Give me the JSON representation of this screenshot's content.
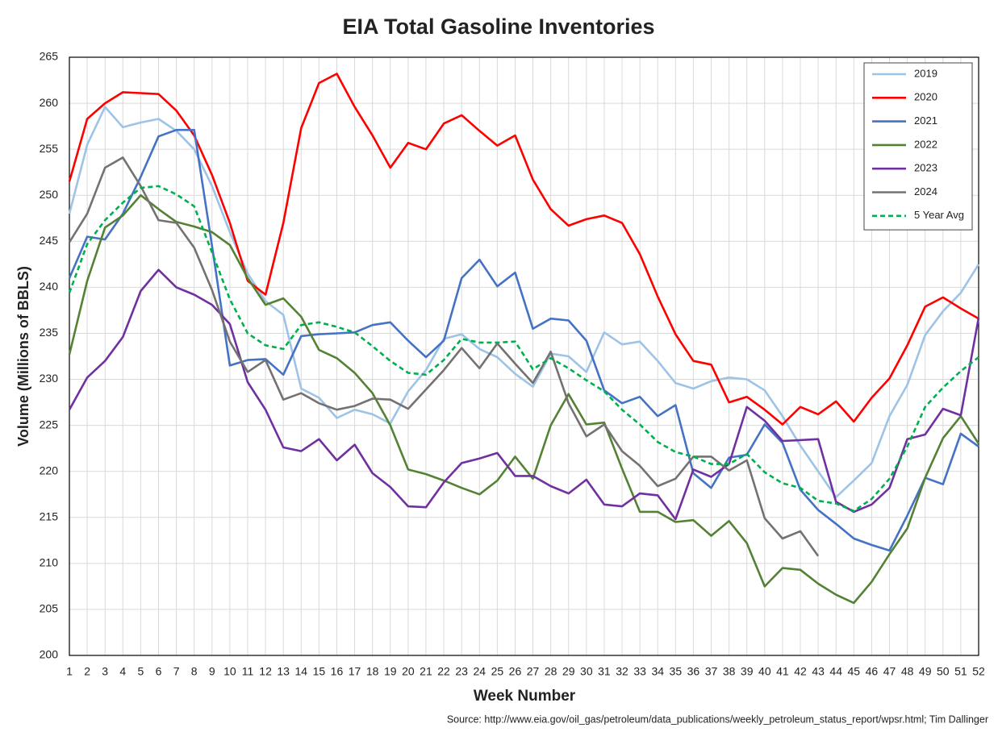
{
  "chart_data": {
    "type": "line",
    "title": "EIA Total Gasoline Inventories",
    "x_label": "Week Number",
    "y_label": "Volume (Millions of BBLS)",
    "source": "Source: http://www.eia.gov/oil_gas/petroleum/data_publications/weekly_petroleum_status_report/wpsr.html; Tim Dallinger",
    "x": [
      1,
      2,
      3,
      4,
      5,
      6,
      7,
      8,
      9,
      10,
      11,
      12,
      13,
      14,
      15,
      16,
      17,
      18,
      19,
      20,
      21,
      22,
      23,
      24,
      25,
      26,
      27,
      28,
      29,
      30,
      31,
      32,
      33,
      34,
      35,
      36,
      37,
      38,
      39,
      40,
      41,
      42,
      43,
      44,
      45,
      46,
      47,
      48,
      49,
      50,
      51,
      52
    ],
    "xlim": [
      1,
      52
    ],
    "xticks": [
      1,
      2,
      3,
      4,
      5,
      6,
      7,
      8,
      9,
      10,
      11,
      12,
      13,
      14,
      15,
      16,
      17,
      18,
      19,
      20,
      21,
      22,
      23,
      24,
      25,
      26,
      27,
      28,
      29,
      30,
      31,
      32,
      33,
      34,
      35,
      36,
      37,
      38,
      39,
      40,
      41,
      42,
      43,
      44,
      45,
      46,
      47,
      48,
      49,
      50,
      51,
      52
    ],
    "ylim": [
      200,
      265
    ],
    "yticks": [
      200,
      205,
      210,
      215,
      220,
      225,
      230,
      235,
      240,
      245,
      250,
      255,
      260,
      265
    ],
    "grid": true,
    "legend_position": "upper right",
    "series": [
      {
        "name": "2019",
        "color": "#9dc3e6",
        "line_style": "solid",
        "values": [
          248,
          255.5,
          259.6,
          257.4,
          257.9,
          258.3,
          257,
          255,
          251,
          246,
          241.5,
          238.5,
          237,
          229,
          228,
          225.8,
          226.7,
          226.2,
          225.2,
          228.7,
          231,
          234.4,
          234.9,
          233.3,
          232.4,
          230.6,
          229.2,
          232.8,
          232.5,
          230.8,
          235.1,
          233.8,
          234.1,
          232,
          229.6,
          229,
          229.8,
          230.2,
          230,
          228.8,
          226,
          222.8,
          220,
          217.2,
          219,
          220.9,
          226,
          229.4,
          234.8,
          237.4,
          239.4,
          242.5
        ]
      },
      {
        "name": "2020",
        "color": "#ff0000",
        "line_style": "solid",
        "values": [
          251.5,
          258.3,
          260,
          261.2,
          261.1,
          261,
          259.2,
          256.5,
          252.2,
          247,
          240.7,
          239.2,
          247,
          257.3,
          262.2,
          263.2,
          259.6,
          256.5,
          253,
          255.7,
          255,
          257.8,
          258.7,
          257,
          255.4,
          256.5,
          251.7,
          248.5,
          246.7,
          247.4,
          247.8,
          247,
          243.6,
          239,
          234.9,
          232,
          231.6,
          227.5,
          228.1,
          226.7,
          225.1,
          227,
          226.2,
          227.6,
          225.4,
          228,
          230.1,
          233.7,
          237.9,
          238.9,
          237.7,
          236.6
        ]
      },
      {
        "name": "2021",
        "color": "#4472c4",
        "line_style": "solid",
        "values": [
          241,
          245.5,
          245.2,
          248,
          252,
          256.4,
          257.1,
          257.1,
          244.5,
          231.5,
          232.1,
          232.2,
          230.5,
          234.7,
          234.9,
          235,
          235.1,
          235.9,
          236.2,
          234.2,
          232.4,
          234.2,
          241,
          243,
          240.1,
          241.6,
          235.5,
          236.6,
          236.4,
          234.2,
          228.8,
          227.4,
          228.1,
          226,
          227.2,
          219.8,
          218.2,
          221.5,
          221.8,
          225.1,
          223.1,
          218,
          215.8,
          214.3,
          212.7,
          212,
          211.4,
          215.2,
          219.3,
          218.6,
          224.1,
          222.7
        ]
      },
      {
        "name": "2022",
        "color": "#548235",
        "line_style": "solid",
        "values": [
          232.7,
          240.7,
          246.5,
          247.8,
          250,
          248.5,
          247.1,
          246.6,
          246,
          244.6,
          241,
          238.1,
          238.8,
          236.8,
          233.2,
          232.3,
          230.7,
          228.5,
          225,
          220.2,
          219.7,
          219,
          218.2,
          217.5,
          219,
          221.6,
          219.2,
          225,
          228.4,
          225.1,
          225.3,
          220.3,
          215.6,
          215.6,
          214.5,
          214.7,
          213,
          214.6,
          212.2,
          207.5,
          209.5,
          209.3,
          207.8,
          206.6,
          205.7,
          208,
          211,
          213.8,
          219.3,
          223.6,
          226,
          223
        ]
      },
      {
        "name": "2023",
        "color": "#7030a0",
        "line_style": "solid",
        "values": [
          226.7,
          230.2,
          232,
          234.6,
          239.6,
          241.9,
          240,
          239.2,
          238.1,
          236,
          229.7,
          226.7,
          222.6,
          222.2,
          223.5,
          221.2,
          222.9,
          219.8,
          218.3,
          216.2,
          216.1,
          218.8,
          220.9,
          221.4,
          222,
          219.5,
          219.5,
          218.4,
          217.6,
          219.1,
          216.4,
          216.2,
          217.6,
          217.4,
          214.8,
          220.2,
          219.4,
          220.8,
          227,
          225.5,
          223.3,
          223.4,
          223.5,
          216.7,
          215.6,
          216.4,
          218.2,
          223.5,
          224,
          226.8,
          226.1,
          236.7
        ]
      },
      {
        "name": "2024",
        "color": "#767171",
        "line_style": "solid",
        "values": [
          244.9,
          248,
          253,
          254.1,
          251,
          247.3,
          247,
          244.3,
          239.7,
          234.1,
          230.8,
          232.1,
          227.8,
          228.5,
          227.4,
          226.7,
          227.1,
          227.9,
          227.8,
          226.8,
          228.9,
          231,
          233.4,
          231.2,
          233.9,
          231.7,
          229.6,
          233,
          227.4,
          223.8,
          225.1,
          222.2,
          220.6,
          218.4,
          219.2,
          221.6,
          221.6,
          220.1,
          221.2,
          214.9,
          212.7,
          213.5,
          210.8,
          null,
          null,
          null,
          null,
          null,
          null,
          null,
          null,
          null
        ]
      },
      {
        "name": "5 Year Avg",
        "color": "#00b050",
        "line_style": "dashed",
        "values": [
          239.4,
          244.7,
          247.3,
          249.2,
          250.8,
          251,
          250.1,
          248.8,
          243.8,
          238.7,
          235,
          233.7,
          233.3,
          235.9,
          236.2,
          235.7,
          235.1,
          233.6,
          232,
          230.7,
          230.5,
          232.1,
          234.4,
          234,
          234,
          234.1,
          231.1,
          232.3,
          231.2,
          229.9,
          228.7,
          226.7,
          225.1,
          223.2,
          222.1,
          221.6,
          220.8,
          220.8,
          221.9,
          219.9,
          218.7,
          218.2,
          216.8,
          216.5,
          215.7,
          217,
          219.2,
          222.7,
          227,
          229.1,
          230.9,
          232.4
        ]
      }
    ]
  }
}
